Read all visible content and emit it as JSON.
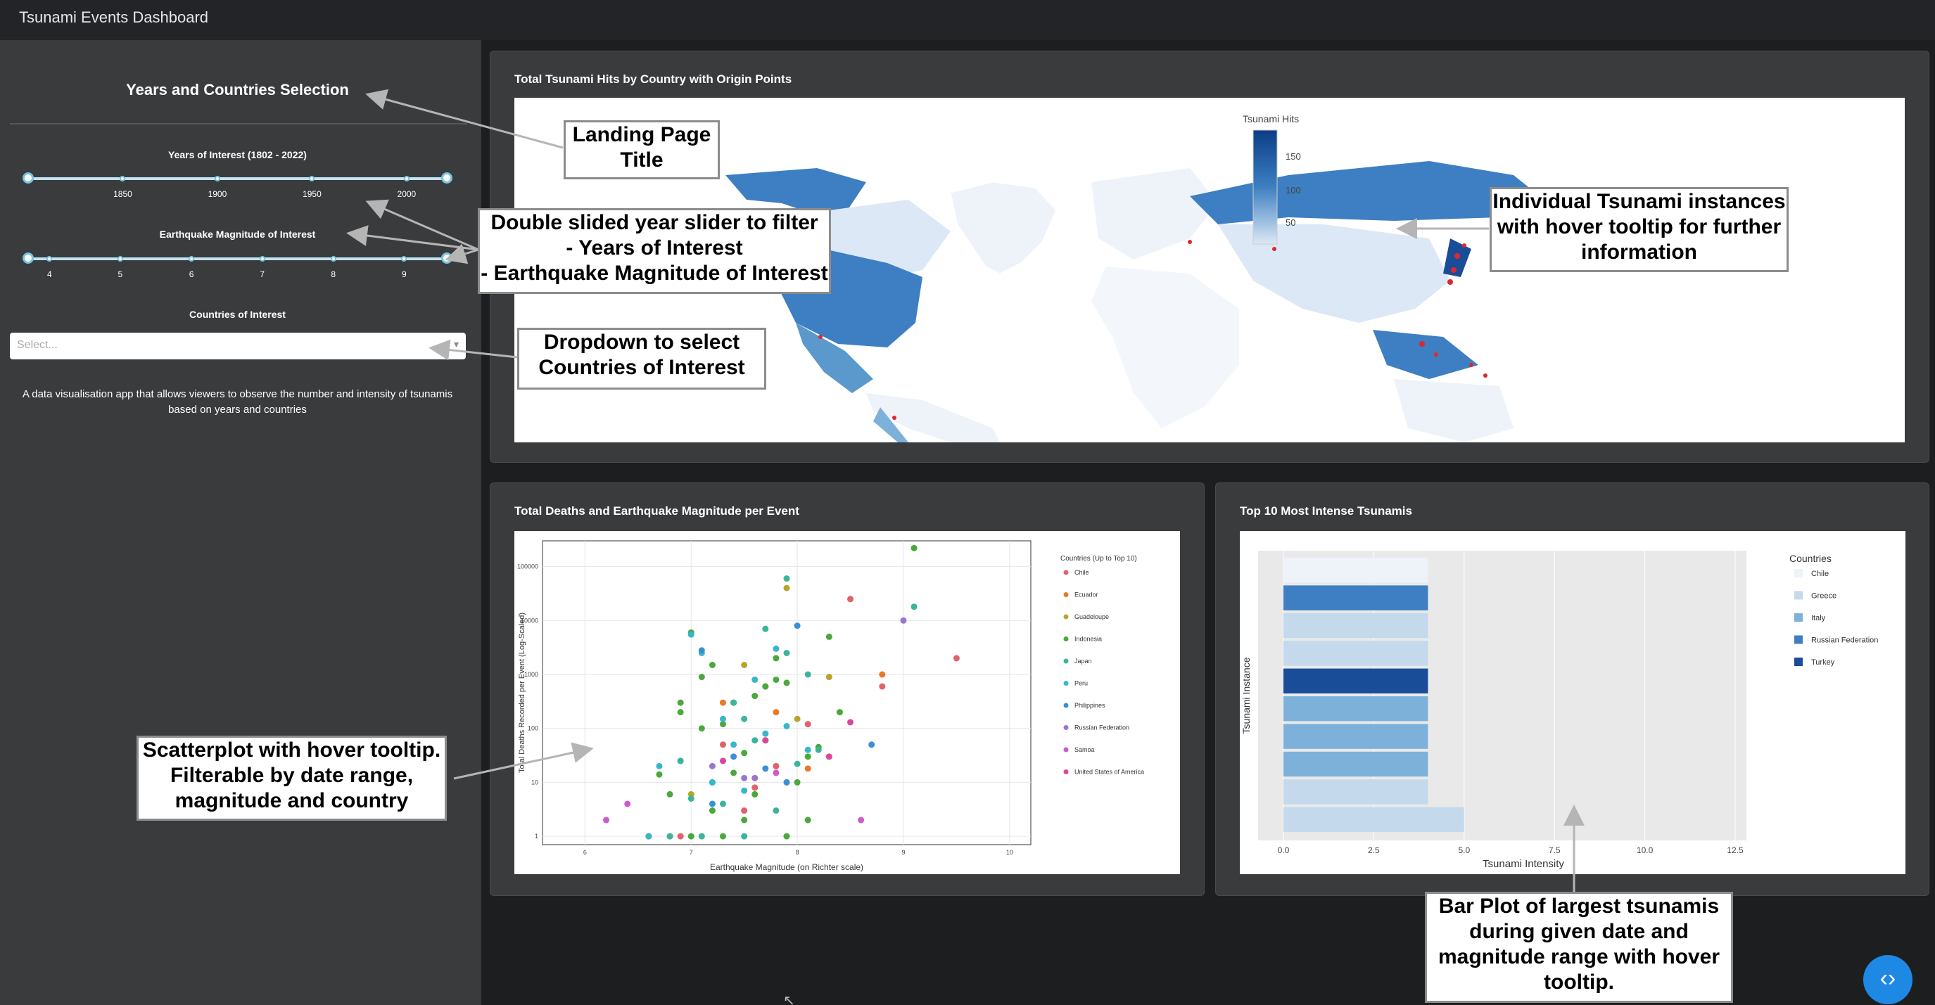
{
  "app": {
    "title": "Tsunami Events Dashboard"
  },
  "sidebar": {
    "title": "Years and Countries Selection",
    "years_label": "Years of Interest (1802 - 2022)",
    "year_ticks": [
      "1850",
      "1900",
      "1950",
      "2000"
    ],
    "magnitude_label": "Earthquake Magnitude of Interest",
    "magnitude_ticks": [
      "4",
      "5",
      "6",
      "7",
      "8",
      "9"
    ],
    "countries_label": "Countries of Interest",
    "countries_placeholder": "Select...",
    "description": "A data visualisation app that allows viewers to observe the number and intensity of tsunamis based on years and countries"
  },
  "map_card": {
    "title": "Total Tsunami Hits by Country with Origin Points",
    "colorbar_title": "Tsunami Hits",
    "colorbar_ticks": [
      "150",
      "100",
      "50"
    ]
  },
  "scatter_card": {
    "title": "Total Deaths and Earthquake Magnitude per Event"
  },
  "bar_card": {
    "title": "Top 10 Most Intense Tsunamis"
  },
  "callouts": {
    "landing": "Landing Page Title",
    "slider": "Double slided year slider to filter\n- Years of Interest\n- Earthquake Magnitude of Interest",
    "dropdown": "Dropdown to select Countries of Interest",
    "individual": "Individual Tsunami instances with hover tooltip for further information",
    "scatter": "Scatterplot with hover tooltip. Filterable by date range, magnitude and country",
    "bar": "Bar Plot of largest tsunamis during given date and magnitude range with hover tooltip."
  },
  "colors": {
    "accent": "#1e88e5",
    "slider": "#79c4de",
    "bg": "#1d1e20",
    "panel": "#3a3b3d"
  },
  "chart_data": [
    {
      "type": "scatter",
      "title": "",
      "xlabel": "Earthquake Magnitude (on Richter scale)",
      "ylabel": "Total Deaths Recorded per Event (Log-Scaled)",
      "yscale": "log",
      "xlim": [
        5.6,
        10.2
      ],
      "ylim": [
        0.7,
        300000
      ],
      "x_ticks": [
        "6",
        "7",
        "8",
        "9",
        "10"
      ],
      "y_ticks": [
        "1",
        "10",
        "100",
        "1000",
        "10000",
        "100000"
      ],
      "legend_title": "Countries (Up to Top 10)",
      "legend_position": "right",
      "series": [
        {
          "name": "Chile",
          "color": "#e0626a",
          "x": [
            8.5,
            9.5,
            8.8,
            7.3,
            7.6,
            8.1,
            7.8,
            6.9,
            7.5
          ],
          "y": [
            25000,
            2000,
            600,
            50,
            8,
            120,
            20,
            1,
            3
          ]
        },
        {
          "name": "Ecuador",
          "color": "#e8792a",
          "x": [
            7.3,
            7.8,
            8.1,
            6.6,
            7.7,
            8.8
          ],
          "y": [
            300,
            200,
            18,
            1,
            600,
            1000
          ]
        },
        {
          "name": "Guadeloupe",
          "color": "#b7a52b",
          "x": [
            7.9,
            7.5,
            8.3,
            7.0,
            6.8,
            8.0
          ],
          "y": [
            40000,
            1500,
            900,
            6,
            1,
            150
          ]
        },
        {
          "name": "Indonesia",
          "color": "#4aa83c",
          "x": [
            9.1,
            7.0,
            7.2,
            7.8,
            7.6,
            7.9,
            7.4,
            7.3,
            7.7,
            8.1,
            7.1,
            6.9,
            6.7,
            8.2,
            7.5,
            8.0,
            7.8,
            6.6,
            6.9,
            7.2,
            7.6,
            8.4,
            7.3,
            7.0,
            7.9,
            7.5,
            6.8,
            8.1,
            7.7,
            7.4,
            8.3,
            7.1,
            6.9
          ],
          "y": [
            220000,
            6000,
            1500,
            800,
            400,
            700,
            300,
            120,
            60,
            30,
            900,
            200,
            14,
            45,
            35,
            10,
            2000,
            1,
            25,
            3,
            6,
            200,
            1,
            1,
            1,
            2,
            6,
            2,
            600,
            15,
            5000,
            100,
            300
          ]
        },
        {
          "name": "Japan",
          "color": "#3db39a",
          "x": [
            7.9,
            9.1,
            7.7,
            7.9,
            8.1,
            7.4,
            7.6,
            6.9,
            7.2,
            7.6,
            7.0,
            7.8,
            8.2,
            7.3,
            6.8,
            8.0,
            7.5,
            7.1,
            7.9,
            7.5
          ],
          "y": [
            60000,
            18000,
            7000,
            2500,
            1000,
            300,
            60,
            25,
            10,
            12,
            5,
            3,
            40,
            4,
            1,
            22,
            1,
            1,
            10,
            150
          ]
        },
        {
          "name": "Peru",
          "color": "#38b6cc",
          "x": [
            7.0,
            7.1,
            7.8,
            7.6,
            7.3,
            7.9,
            6.7,
            7.2,
            7.5,
            8.1,
            6.6,
            7.4,
            7.7
          ],
          "y": [
            5500,
            2500,
            3000,
            800,
            150,
            110,
            20,
            10,
            7,
            40,
            1,
            50,
            80
          ]
        },
        {
          "name": "Philippines",
          "color": "#3c8fd4",
          "x": [
            7.1,
            8.0,
            8.7,
            7.7,
            7.9,
            7.4,
            7.2
          ],
          "y": [
            2800,
            8000,
            50,
            18,
            10,
            30,
            4
          ]
        },
        {
          "name": "Russian Federation",
          "color": "#9a76d1",
          "x": [
            9.0,
            7.2,
            7.5,
            7.6
          ],
          "y": [
            10000,
            20,
            12,
            12
          ]
        },
        {
          "name": "Samoa",
          "color": "#cc5ccb",
          "x": [
            6.2,
            6.4,
            8.6,
            7.8
          ],
          "y": [
            2,
            4,
            2,
            15
          ]
        },
        {
          "name": "United States of America",
          "color": "#d9479a",
          "x": [
            8.5,
            7.7,
            7.3,
            8.3
          ],
          "y": [
            130,
            60,
            25,
            30
          ]
        }
      ]
    },
    {
      "type": "bar",
      "orientation": "horizontal",
      "title": "",
      "xlabel": "Tsunami Intensity",
      "ylabel": "Tsunami Instance",
      "xlim": [
        0,
        12.5
      ],
      "x_ticks": [
        "0.0",
        "2.5",
        "5.0",
        "7.5",
        "10.0",
        "12.5"
      ],
      "legend_title": "Countries",
      "legend_position": "right",
      "legend": [
        {
          "name": "Chile",
          "color": "#eef3fa"
        },
        {
          "name": "Greece",
          "color": "#c4d9ec"
        },
        {
          "name": "Italy",
          "color": "#7eb1d9"
        },
        {
          "name": "Russian Federation",
          "color": "#3d7fc2"
        },
        {
          "name": "Turkey",
          "color": "#1a4d97"
        }
      ],
      "bars": [
        {
          "country": "Chile",
          "value": 4.0
        },
        {
          "country": "Russian Federation",
          "value": 4.0
        },
        {
          "country": "Greece",
          "value": 4.0
        },
        {
          "country": "Greece",
          "value": 4.0
        },
        {
          "country": "Turkey",
          "value": 4.0
        },
        {
          "country": "Italy",
          "value": 4.0
        },
        {
          "country": "Italy",
          "value": 4.0
        },
        {
          "country": "Italy",
          "value": 4.0
        },
        {
          "country": "Greece",
          "value": 4.0
        },
        {
          "country": "Greece",
          "value": 5.0
        }
      ]
    }
  ]
}
